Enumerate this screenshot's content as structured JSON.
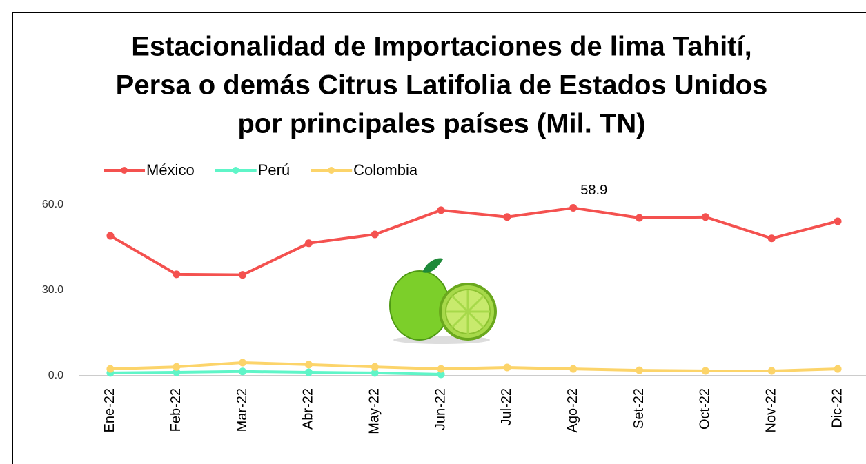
{
  "chart_data": {
    "type": "line",
    "title": [
      "Estacionalidad de Importaciones de lima Tahití,",
      "Persa o demás Citrus Latifolia de Estados Unidos",
      "por principales países (Mil. TN)"
    ],
    "categories": [
      "Ene-22",
      "Feb-22",
      "Mar-22",
      "Abr-22",
      "May-22",
      "Jun-22",
      "Jul-22",
      "Ago-22",
      "Set-22",
      "Oct-22",
      "Nov-22",
      "Dic-22"
    ],
    "series": [
      {
        "name": "México",
        "color": "#f4514f",
        "values": [
          49.1,
          35.6,
          35.4,
          46.5,
          49.6,
          58.1,
          55.7,
          58.9,
          55.4,
          55.7,
          48.2,
          54.2
        ],
        "value_labels": [
          null,
          null,
          null,
          null,
          null,
          null,
          null,
          "58.9",
          null,
          null,
          null,
          null
        ]
      },
      {
        "name": "Perú",
        "color": "#5ff5c8",
        "values": [
          1.0,
          1.2,
          1.5,
          1.2,
          1.0,
          0.5,
          null,
          null,
          null,
          null,
          null,
          null
        ]
      },
      {
        "name": "Colombia",
        "color": "#fcd46a",
        "values": [
          2.4,
          3.1,
          4.6,
          3.9,
          3.1,
          2.4,
          2.9,
          2.4,
          1.9,
          1.7,
          1.7,
          2.4
        ]
      }
    ],
    "ylim": [
      0,
      60
    ],
    "yticks": [
      {
        "value": 0,
        "label": "0.0"
      },
      {
        "value": 30,
        "label": "30.0"
      },
      {
        "value": 60,
        "label": "60.0"
      }
    ],
    "grid": false,
    "legend": "top-left"
  }
}
